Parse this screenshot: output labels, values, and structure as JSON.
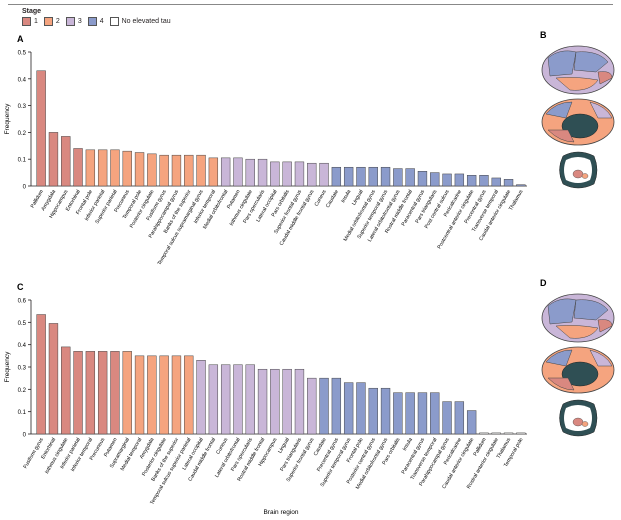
{
  "legend": {
    "title": "Stage",
    "items": [
      {
        "label": "1",
        "color": "#d98880"
      },
      {
        "label": "2",
        "color": "#f5a47f"
      },
      {
        "label": "3",
        "color": "#c9b6d8"
      },
      {
        "label": "4",
        "color": "#8b9bcb"
      },
      {
        "label": "No elevated tau",
        "color": "#ffffff"
      }
    ]
  },
  "colors": {
    "1": "#d98880",
    "2": "#f5a47f",
    "3": "#c9b6d8",
    "4": "#8b9bcb",
    "0": "#ffffff",
    "brain_dark": "#2f4f54"
  },
  "brain_panels": [
    "B",
    "D"
  ],
  "chart_data": [
    {
      "panel": "A",
      "type": "bar",
      "ylabel": "Frequency",
      "ylim": [
        0,
        0.5
      ],
      "yticks": [
        "0",
        "0.1",
        "0.2",
        "0.3",
        "0.4",
        "0.5"
      ],
      "categories": [
        "Pallidum",
        "Amygdala",
        "Hippocampus",
        "Entorhinal",
        "Frontal pole",
        "Inferior parietal",
        "Superior parietal",
        "Precuneus",
        "Temporal pole",
        "Posterior cingulate",
        "Fusiform gyrus",
        "Parahippocampal gyrus",
        "Banks of the superior",
        "Temporal sulcus supramarginal gyrus",
        "Inferior temporal",
        "Medial orbitofrontal",
        "Putamen",
        "Isthmus cingulate",
        "Pars opercularis",
        "Lateral occipital",
        "Pars orbitalis",
        "Superior frontal gyrus",
        "Caudal middle frontal gyrus",
        "Cuneus",
        "Caudate",
        "Insula",
        "Lingual",
        "Medial orbitofrontal gyrus",
        "Superior temporal gyrus",
        "Lateral orbitofrontal gyrus",
        "Rostral middle frontal",
        "Paracentral gyrus",
        "Pars triangularis",
        "Post central sulcus",
        "Pericalcarine",
        "Postcentral anterior cingulate",
        "Precentral gyrus",
        "Transverse temporal",
        "Caudal anterior cingulate",
        "Thalamus"
      ],
      "values": [
        0.43,
        0.2,
        0.185,
        0.14,
        0.135,
        0.135,
        0.135,
        0.13,
        0.125,
        0.12,
        0.115,
        0.115,
        0.115,
        0.115,
        0.105,
        0.105,
        0.105,
        0.1,
        0.1,
        0.09,
        0.09,
        0.09,
        0.085,
        0.085,
        0.07,
        0.07,
        0.07,
        0.07,
        0.07,
        0.065,
        0.065,
        0.055,
        0.05,
        0.045,
        0.045,
        0.04,
        0.04,
        0.03,
        0.025,
        0.005
      ],
      "stages": [
        1,
        1,
        1,
        1,
        2,
        2,
        2,
        2,
        2,
        2,
        2,
        2,
        2,
        2,
        2,
        3,
        3,
        3,
        3,
        3,
        3,
        3,
        3,
        3,
        4,
        4,
        4,
        4,
        4,
        4,
        4,
        4,
        4,
        4,
        4,
        4,
        4,
        4,
        4,
        4
      ]
    },
    {
      "panel": "C",
      "type": "bar",
      "ylabel": "Frequency",
      "xlabel": "Brain region",
      "ylim": [
        0,
        0.6
      ],
      "yticks": [
        "0",
        "0.1",
        "0.2",
        "0.3",
        "0.4",
        "0.5",
        "0.6"
      ],
      "categories": [
        "Fusiform gyrus",
        "Entorhinal",
        "Isthmus cingulate",
        "Inferior parietal",
        "Inferior temporal",
        "Precuneus",
        "Putamen",
        "Supramarginal",
        "Medial temporal",
        "Amygdala",
        "Posterior cingulate",
        "Banks of the superior",
        "Temporal sulcus superior parietal",
        "Lateral occipital",
        "Caudal middle frontal",
        "Cuneus",
        "Lateral orbitofrontal",
        "Pars opercularis",
        "Rostral middle frontal",
        "Hippocampus",
        "Lingual",
        "Pars triangularis",
        "Superior frontal gyrus",
        "Caudate",
        "Precentral gyrus",
        "Superior temporal gyrus",
        "Frontal pole",
        "Posterior central gyrus",
        "Medial orbitofrontal gyrus",
        "Pars orbitalis",
        "Insula",
        "Paracentral gyrus",
        "Transverse temporal",
        "Parahippocampal gyrus",
        "Pericalcarine",
        "Caudal anterior cingulate",
        "Pallidum",
        "Rostral anterior cingulate",
        "Thalamus",
        "Temporal pole"
      ],
      "values": [
        0.535,
        0.495,
        0.39,
        0.37,
        0.37,
        0.37,
        0.37,
        0.37,
        0.35,
        0.35,
        0.35,
        0.35,
        0.35,
        0.33,
        0.31,
        0.31,
        0.31,
        0.31,
        0.29,
        0.29,
        0.29,
        0.29,
        0.25,
        0.25,
        0.25,
        0.23,
        0.23,
        0.205,
        0.205,
        0.185,
        0.185,
        0.185,
        0.185,
        0.145,
        0.145,
        0.105,
        0.005,
        0.005,
        0.005,
        0.005
      ],
      "stages": [
        1,
        1,
        1,
        1,
        1,
        1,
        1,
        2,
        2,
        2,
        2,
        2,
        2,
        3,
        3,
        3,
        3,
        3,
        3,
        3,
        3,
        3,
        3,
        4,
        4,
        4,
        4,
        4,
        4,
        4,
        4,
        4,
        4,
        4,
        4,
        4,
        0,
        0,
        0,
        0
      ]
    }
  ]
}
